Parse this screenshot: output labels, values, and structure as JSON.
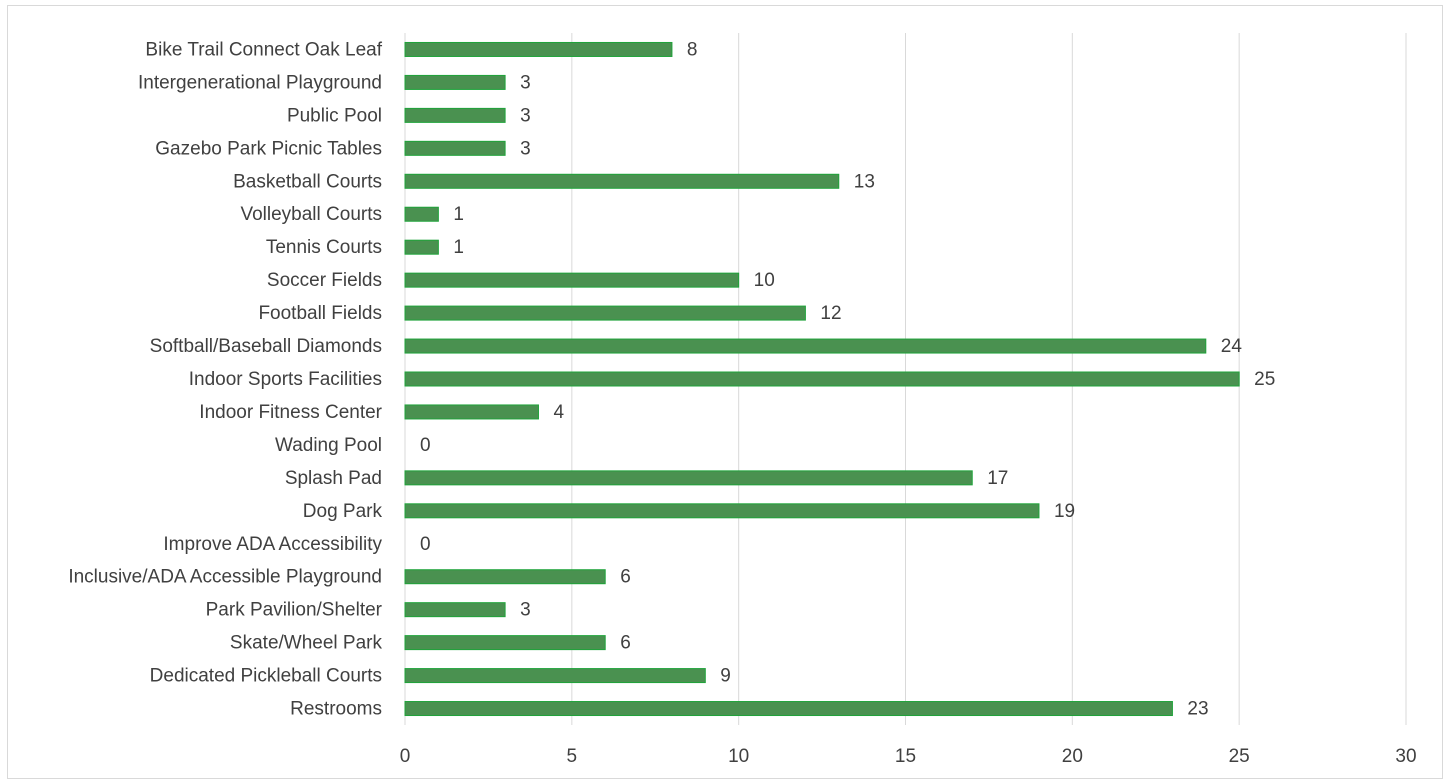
{
  "chart_data": {
    "type": "bar",
    "orientation": "horizontal",
    "title": "",
    "xlabel": "",
    "ylabel": "",
    "categories": [
      "Bike Trail Connect Oak Leaf",
      "Intergenerational Playground",
      "Public Pool",
      "Gazebo Park Picnic Tables",
      "Basketball Courts",
      "Volleyball Courts",
      "Tennis Courts",
      "Soccer Fields",
      "Football Fields",
      "Softball/Baseball Diamonds",
      "Indoor Sports Facilities",
      "Indoor Fitness Center",
      "Wading Pool",
      "Splash Pad",
      "Dog Park",
      "Improve ADA Accessibility",
      "Inclusive/ADA Accessible Playground",
      "Park Pavilion/Shelter",
      "Skate/Wheel Park",
      "Dedicated Pickleball Courts",
      "Restrooms"
    ],
    "values": [
      8,
      3,
      3,
      3,
      13,
      1,
      1,
      10,
      12,
      24,
      25,
      4,
      0,
      17,
      19,
      0,
      6,
      3,
      6,
      9,
      23
    ],
    "xlim": [
      0,
      30
    ],
    "xticks": [
      "0",
      "5",
      "10",
      "15",
      "20",
      "25",
      "30"
    ],
    "grid": true,
    "legend": "none",
    "colors": {
      "bar_fill": "#4a9150",
      "bar_edge": "#1fa33a",
      "grid": "#d9d9d9",
      "text": "#404040"
    }
  }
}
